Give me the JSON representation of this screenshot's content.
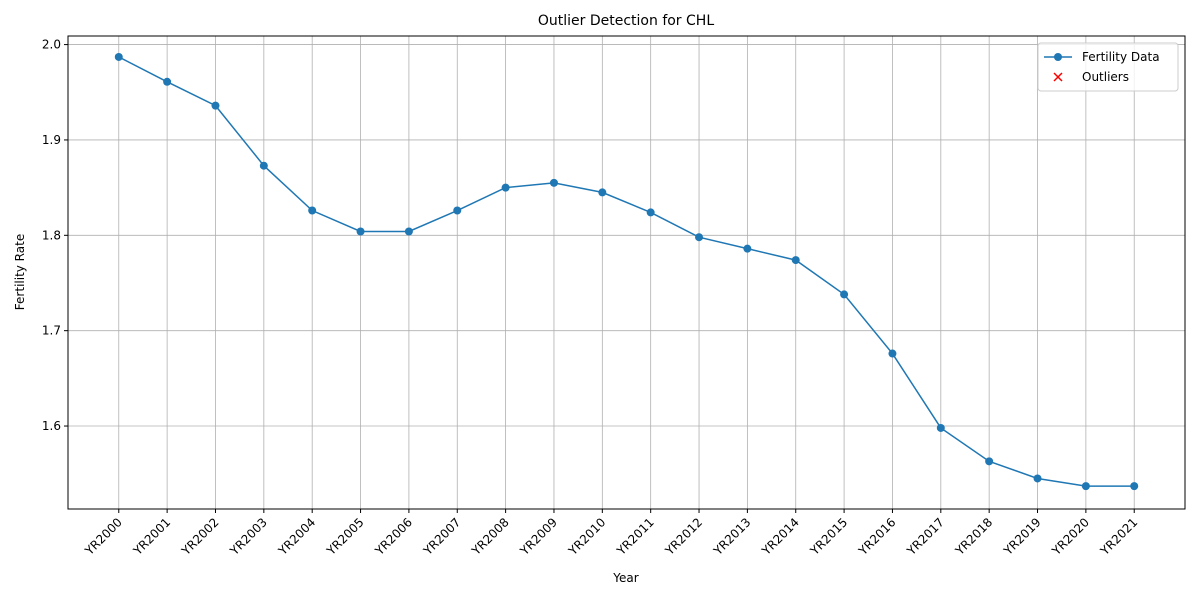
{
  "chart_data": {
    "type": "line",
    "title": "Outlier Detection for CHL",
    "x_label": "Year",
    "y_label": "Fertility Rate",
    "categories": [
      "YR2000",
      "YR2001",
      "YR2002",
      "YR2003",
      "YR2004",
      "YR2005",
      "YR2006",
      "YR2007",
      "YR2008",
      "YR2009",
      "YR2010",
      "YR2011",
      "YR2012",
      "YR2013",
      "YR2014",
      "YR2015",
      "YR2016",
      "YR2017",
      "YR2018",
      "YR2019",
      "YR2020",
      "YR2021"
    ],
    "series": [
      {
        "name": "Fertility Data",
        "color": "#1f77b4",
        "marker": "circle",
        "values": [
          1.987,
          1.961,
          1.936,
          1.873,
          1.826,
          1.804,
          1.804,
          1.826,
          1.85,
          1.855,
          1.845,
          1.824,
          1.798,
          1.786,
          1.774,
          1.738,
          1.676,
          1.598,
          1.563,
          1.545,
          1.537,
          1.537
        ]
      },
      {
        "name": "Outliers",
        "color": "#ff0000",
        "marker": "x",
        "values": [
          null,
          null,
          null,
          null,
          null,
          null,
          null,
          null,
          null,
          null,
          null,
          null,
          null,
          null,
          null,
          null,
          null,
          null,
          null,
          null,
          null,
          null
        ]
      }
    ],
    "ylim": [
      1.513,
      2.009
    ],
    "yticks": [
      {
        "value": 1.6,
        "label": "1.6"
      },
      {
        "value": 1.7,
        "label": "1.7"
      },
      {
        "value": 1.8,
        "label": "1.8"
      },
      {
        "value": 1.9,
        "label": "1.9"
      },
      {
        "value": 2.0,
        "label": "2.0"
      }
    ],
    "grid": true,
    "legend": "upper right"
  }
}
